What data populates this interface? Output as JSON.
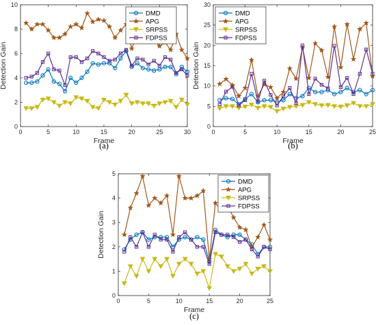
{
  "colors": {
    "DMD": "#0072BD",
    "APG": "#A2581A",
    "SRPSS": "#C8B914",
    "FDPSS": "#5B2C8F"
  },
  "chart_data": [
    {
      "type": "line",
      "panel": "(a)",
      "xlabel": "Frame",
      "ylabel": "Detection Gain",
      "xlim": [
        0,
        30
      ],
      "ylim": [
        0,
        10
      ],
      "xticks": [
        0,
        5,
        10,
        15,
        20,
        25,
        30
      ],
      "yticks": [
        0,
        2,
        4,
        6,
        8,
        10
      ],
      "grid": false,
      "legend": "top-right",
      "x": [
        1,
        2,
        3,
        4,
        5,
        6,
        7,
        8,
        9,
        10,
        11,
        12,
        13,
        14,
        15,
        16,
        17,
        18,
        19,
        20,
        21,
        22,
        23,
        24,
        25,
        26,
        27,
        28,
        29,
        30
      ],
      "series": [
        {
          "name": "DMD",
          "marker": "circle",
          "values": [
            3.6,
            3.6,
            3.7,
            4.2,
            4.7,
            3.7,
            3.5,
            2.9,
            4.0,
            3.6,
            4.0,
            4.5,
            5.2,
            5.1,
            5.2,
            5.2,
            4.8,
            5.6,
            6.2,
            4.9,
            5.2,
            4.8,
            4.7,
            4.6,
            4.7,
            4.9,
            4.9,
            4.3,
            4.9,
            4.5
          ]
        },
        {
          "name": "APG",
          "marker": "star",
          "values": [
            8.5,
            8.0,
            8.4,
            8.4,
            7.9,
            7.3,
            7.3,
            7.6,
            8.2,
            8.4,
            8.1,
            9.3,
            8.6,
            8.8,
            8.7,
            8.2,
            7.3,
            7.9,
            8.4,
            6.4,
            7.7,
            7.1,
            7.3,
            7.1,
            6.6,
            6.9,
            6.3,
            7.6,
            6.3,
            5.6
          ]
        },
        {
          "name": "SRPSS",
          "marker": "triangle-down",
          "values": [
            1.5,
            1.5,
            1.6,
            2.2,
            2.3,
            2.0,
            1.7,
            2.0,
            1.9,
            2.4,
            2.3,
            2.1,
            1.6,
            1.5,
            2.2,
            2.0,
            1.8,
            2.1,
            2.6,
            1.9,
            2.0,
            1.9,
            1.9,
            1.7,
            1.9,
            2.0,
            2.1,
            1.6,
            2.2,
            1.8
          ]
        },
        {
          "name": "FDPSS",
          "marker": "square",
          "values": [
            4.0,
            4.1,
            4.4,
            5.3,
            6.0,
            4.7,
            4.6,
            3.4,
            5.7,
            5.7,
            5.3,
            5.6,
            6.2,
            6.0,
            5.7,
            5.4,
            5.5,
            6.0,
            6.3,
            5.0,
            5.6,
            5.5,
            5.1,
            5.4,
            5.0,
            5.7,
            5.5,
            4.4,
            4.7,
            4.2
          ]
        }
      ]
    },
    {
      "type": "line",
      "panel": "(b)",
      "xlabel": "Frame",
      "ylabel": "Detection Gain",
      "xlim": [
        0,
        25
      ],
      "ylim": [
        0,
        30
      ],
      "xticks": [
        0,
        5,
        10,
        15,
        20,
        25
      ],
      "yticks": [
        0,
        5,
        10,
        15,
        20,
        25,
        30
      ],
      "grid": false,
      "legend": "top-left",
      "x": [
        1,
        2,
        3,
        4,
        5,
        6,
        7,
        8,
        9,
        10,
        11,
        12,
        13,
        14,
        15,
        16,
        17,
        18,
        19,
        20,
        21,
        22,
        23,
        24,
        25
      ],
      "series": [
        {
          "name": "DMD",
          "marker": "circle",
          "values": [
            6.5,
            7.0,
            6.8,
            5.5,
            6.8,
            8.0,
            6.0,
            6.5,
            6.5,
            6.0,
            6.5,
            8.0,
            7.0,
            7.5,
            9.5,
            8.5,
            8.5,
            9.0,
            8.0,
            8.5,
            9.5,
            8.5,
            9.0,
            8.0,
            9.0
          ]
        },
        {
          "name": "APG",
          "marker": "star",
          "values": [
            10.5,
            11.7,
            10.2,
            7.5,
            9.5,
            16.4,
            7.5,
            10.4,
            9.7,
            7.0,
            8.5,
            14.3,
            11.8,
            19.5,
            12.0,
            20.5,
            18.8,
            12.2,
            24.6,
            14.6,
            25.2,
            16.6,
            24.0,
            25.5,
            12.4
          ]
        },
        {
          "name": "SRPSS",
          "marker": "triangle-down",
          "values": [
            4.5,
            5.0,
            5.0,
            4.6,
            4.9,
            5.4,
            4.6,
            5.0,
            4.8,
            3.8,
            4.4,
            4.8,
            5.0,
            5.3,
            6.0,
            5.5,
            5.2,
            5.3,
            5.0,
            4.9,
            5.2,
            5.8,
            5.0,
            5.0,
            5.5
          ]
        },
        {
          "name": "FDPSS",
          "marker": "square",
          "values": [
            5.5,
            8.6,
            9.8,
            5.2,
            6.5,
            13.0,
            6.2,
            11.3,
            7.8,
            5.2,
            7.5,
            9.5,
            5.8,
            20.0,
            8.0,
            11.8,
            10.3,
            9.4,
            19.9,
            9.7,
            12.0,
            8.0,
            13.0,
            19.0,
            13.0
          ]
        }
      ]
    },
    {
      "type": "line",
      "panel": "(c)",
      "xlabel": "Frame",
      "ylabel": "Detection Gain",
      "xlim": [
        0,
        25
      ],
      "ylim": [
        0,
        5
      ],
      "xticks": [
        0,
        5,
        10,
        15,
        20,
        25
      ],
      "yticks": [
        0,
        1,
        2,
        3,
        4,
        5
      ],
      "grid": false,
      "legend": "top-right",
      "x": [
        1,
        2,
        3,
        4,
        5,
        6,
        7,
        8,
        9,
        10,
        11,
        12,
        13,
        14,
        15,
        16,
        17,
        18,
        19,
        20,
        21,
        22,
        23,
        24,
        25
      ],
      "series": [
        {
          "name": "DMD",
          "marker": "circle",
          "values": [
            1.9,
            2.3,
            2.5,
            2.6,
            2.3,
            2.4,
            2.4,
            2.4,
            2.0,
            2.3,
            2.4,
            2.3,
            2.4,
            2.3,
            1.4,
            2.7,
            2.5,
            2.4,
            2.5,
            2.5,
            2.3,
            2.1,
            1.7,
            2.0,
            2.0
          ]
        },
        {
          "name": "APG",
          "marker": "star",
          "values": [
            2.5,
            3.6,
            4.2,
            4.9,
            3.7,
            4.0,
            3.8,
            4.1,
            2.5,
            4.9,
            4.0,
            4.0,
            4.1,
            4.3,
            1.5,
            3.8,
            3.5,
            3.7,
            3.2,
            2.8,
            2.7,
            2.0,
            2.4,
            2.9,
            2.3
          ]
        },
        {
          "name": "SRPSS",
          "marker": "triangle-down",
          "values": [
            0.5,
            1.2,
            0.8,
            1.5,
            1.0,
            1.5,
            1.2,
            1.5,
            0.8,
            1.3,
            1.5,
            1.3,
            0.9,
            1.0,
            0.3,
            1.7,
            1.6,
            1.2,
            1.0,
            1.1,
            1.3,
            0.9,
            1.1,
            1.2,
            1.0
          ]
        },
        {
          "name": "FDPSS",
          "marker": "square",
          "values": [
            1.8,
            2.4,
            2.0,
            2.6,
            2.0,
            2.5,
            2.3,
            2.3,
            1.8,
            2.4,
            2.6,
            2.3,
            2.0,
            2.0,
            1.3,
            2.6,
            2.5,
            2.5,
            2.4,
            2.2,
            2.3,
            1.9,
            1.6,
            2.0,
            1.9
          ]
        }
      ]
    }
  ]
}
